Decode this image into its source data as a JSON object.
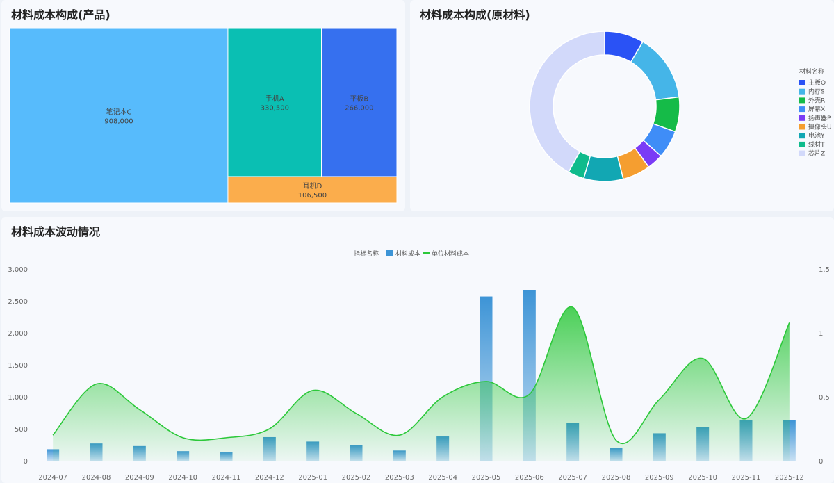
{
  "product_panel": {
    "title": "材料成本构成(产品)"
  },
  "material_panel": {
    "title": "材料成本构成(原材料)"
  },
  "trend_panel": {
    "title": "材料成本波动情况"
  },
  "chart_data": [
    {
      "type": "treemap",
      "title": "材料成本构成(产品)",
      "items": [
        {
          "name": "笔记本C",
          "value": 908000,
          "label": "908,000",
          "color": "#57bbfc"
        },
        {
          "name": "手机A",
          "value": 330500,
          "label": "330,500",
          "color": "#0abfb3"
        },
        {
          "name": "平板B",
          "value": 266000,
          "label": "266,000",
          "color": "#3670ef"
        },
        {
          "name": "耳机D",
          "value": 106500,
          "label": "106,500",
          "color": "#fbad4c"
        }
      ]
    },
    {
      "type": "pie",
      "title": "材料成本构成(原材料)",
      "legend_title": "材料名称",
      "slices": [
        {
          "name": "主板Q",
          "value": 8.5,
          "color": "#2a52f5"
        },
        {
          "name": "内存S",
          "value": 14.5,
          "color": "#45b5e8"
        },
        {
          "name": "外壳R",
          "value": 7.5,
          "color": "#15bb48"
        },
        {
          "name": "屏幕X",
          "value": 6.0,
          "color": "#3f8df7"
        },
        {
          "name": "扬声器P",
          "value": 3.5,
          "color": "#7a3cf6"
        },
        {
          "name": "摄像头U",
          "value": 6.0,
          "color": "#f59e30"
        },
        {
          "name": "电池Y",
          "value": 8.5,
          "color": "#12a7b3"
        },
        {
          "name": "线材T",
          "value": 3.5,
          "color": "#0fbb8c"
        },
        {
          "name": "芯片Z",
          "value": 42.0,
          "color": "#d2d9fa"
        }
      ]
    },
    {
      "type": "bar",
      "title": "材料成本波动情况",
      "legend_title": "指标名称",
      "categories": [
        "2024-07",
        "2024-08",
        "2024-09",
        "2024-10",
        "2024-11",
        "2024-12",
        "2025-01",
        "2025-02",
        "2025-03",
        "2025-04",
        "2025-05",
        "2025-06",
        "2025-07",
        "2025-08",
        "2025-09",
        "2025-10",
        "2025-11",
        "2025-12"
      ],
      "series": [
        {
          "name": "材料成本",
          "type": "bar",
          "axis": "left",
          "color": "#3d94d6",
          "values": [
            180,
            270,
            230,
            150,
            130,
            370,
            300,
            240,
            160,
            380,
            2570,
            2670,
            590,
            200,
            430,
            530,
            640,
            640
          ]
        },
        {
          "name": "单位材料成本",
          "type": "area",
          "axis": "right",
          "color": "#2cc83a",
          "values": [
            0.2,
            0.6,
            0.4,
            0.18,
            0.18,
            0.25,
            0.55,
            0.37,
            0.2,
            0.5,
            0.62,
            0.52,
            1.2,
            0.16,
            0.48,
            0.8,
            0.33,
            1.08
          ]
        }
      ],
      "y_left": {
        "min": 0,
        "max": 3000,
        "ticks": [
          "0",
          "500",
          "1,000",
          "1,500",
          "2,000",
          "2,500",
          "3,000"
        ],
        "tick_values": [
          0,
          500,
          1000,
          1500,
          2000,
          2500,
          3000
        ]
      },
      "y_right": {
        "min": 0,
        "max": 1.5,
        "ticks": [
          "0",
          "0.5",
          "1",
          "1.5"
        ],
        "tick_values": [
          0,
          0.5,
          1,
          1.5
        ]
      }
    }
  ]
}
